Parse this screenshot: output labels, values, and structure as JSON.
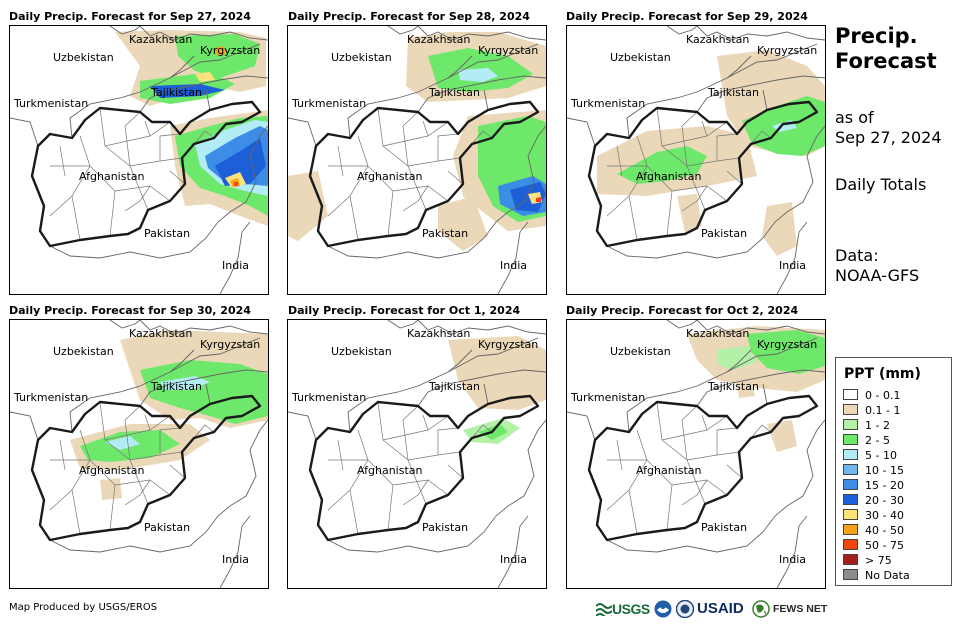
{
  "panels": [
    {
      "title": "Daily Precip. Forecast for Sep 27, 2024",
      "precip": "day1"
    },
    {
      "title": "Daily Precip. Forecast for Sep 28, 2024",
      "precip": "day2"
    },
    {
      "title": "Daily Precip. Forecast for Sep 29, 2024",
      "precip": "day3"
    },
    {
      "title": "Daily Precip. Forecast for Sep 30, 2024",
      "precip": "day4"
    },
    {
      "title": "Daily Precip. Forecast for Oct 1, 2024",
      "precip": "day5"
    },
    {
      "title": "Daily Precip. Forecast for Oct 2, 2024",
      "precip": "day6"
    }
  ],
  "country_labels": {
    "kazakhstan": "Kazakhstan",
    "kyrgyzstan": "Kyrgyzstan",
    "uzbekistan": "Uzbekistan",
    "tajikistan": "Tajikistan",
    "turkmenistan": "Turkmenistan",
    "afghanistan": "Afghanistan",
    "pakistan": "Pakistan",
    "india": "India"
  },
  "sidebar": {
    "title_line1": "Precip.",
    "title_line2": "Forecast",
    "asof_line1": "as of",
    "asof_line2": "Sep 27, 2024",
    "totals": "Daily Totals",
    "data_line1": "Data:",
    "data_line2": "NOAA-GFS"
  },
  "legend": {
    "title": "PPT (mm)",
    "items": [
      {
        "label": "0 - 0.1",
        "color": "#ffffff"
      },
      {
        "label": "0.1 - 1",
        "color": "#ead8b8"
      },
      {
        "label": "1 - 2",
        "color": "#b4f1a8"
      },
      {
        "label": "2 - 5",
        "color": "#6ee86a"
      },
      {
        "label": "5 - 10",
        "color": "#b2ecf5"
      },
      {
        "label": "10 - 15",
        "color": "#72b6ee"
      },
      {
        "label": "15 - 20",
        "color": "#3b8de6"
      },
      {
        "label": "20 - 30",
        "color": "#1d5fd6"
      },
      {
        "label": "30 - 40",
        "color": "#fbe27a"
      },
      {
        "label": "40 - 50",
        "color": "#f5a21a"
      },
      {
        "label": "50 - 75",
        "color": "#ee4511"
      },
      {
        "label": "> 75",
        "color": "#a51e1e"
      },
      {
        "label": "No Data",
        "color": "#8c8c8c"
      }
    ]
  },
  "footer": "Map Produced by USGS/EROS",
  "logos": {
    "usgs": "USGS",
    "usaid": "USAID",
    "fewsnet": "FEWS NET"
  }
}
